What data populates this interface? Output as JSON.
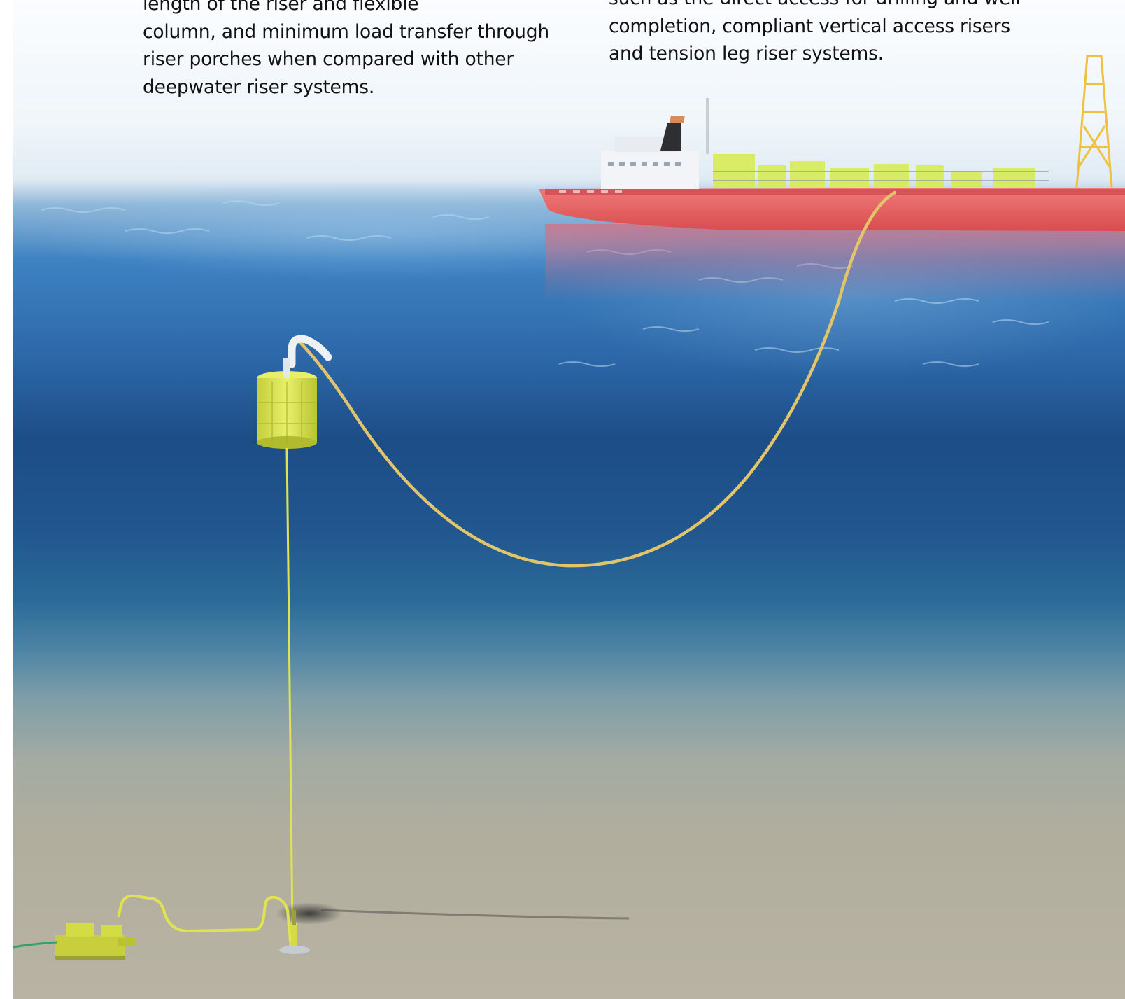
{
  "article": {
    "left_column": {
      "lines": [
        "length of the riser and flexible",
        "column, and minimum load transfer through",
        "riser porches when compared with other",
        "deepwater riser systems."
      ]
    },
    "right_column": {
      "lines": [
        "such as the direct access for drilling and well",
        "completion, compliant vertical access risers",
        "and tension leg riser systems."
      ]
    }
  },
  "illustration": {
    "palette": {
      "sky_top": "#fbfdff",
      "haze": "#dde9f2",
      "surface_water": "#3a7fc0",
      "deep_water": "#1d4d86",
      "mid_water": "#2a6a98",
      "seabed": "#b5b09f",
      "seabed_dark": "#a39d8b",
      "ship_hull": "#e85d5d",
      "equipment_yellow": "#dce64a",
      "riser_tan": "#e2c46a",
      "umbilical_green": "#2fa46a"
    }
  }
}
